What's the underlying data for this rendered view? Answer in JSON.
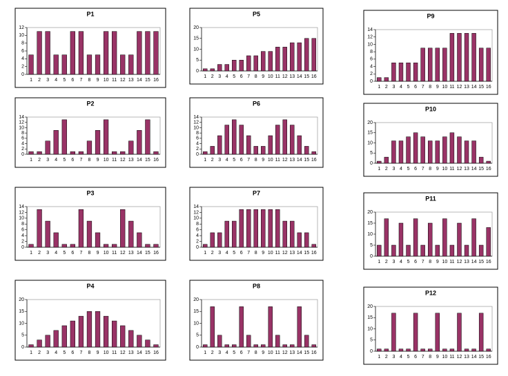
{
  "chart_data": [
    {
      "type": "bar",
      "title": "P1",
      "color": "#993366",
      "categories": [
        "1",
        "2",
        "3",
        "4",
        "5",
        "6",
        "7",
        "8",
        "9",
        "10",
        "11",
        "12",
        "13",
        "14",
        "15",
        "16"
      ],
      "values": [
        5,
        11,
        11,
        5,
        5,
        11,
        11,
        5,
        5,
        11,
        11,
        5,
        5,
        11,
        11,
        11
      ],
      "ylim": [
        0,
        12
      ],
      "yticks": [
        0,
        2,
        4,
        6,
        8,
        10,
        12
      ]
    },
    {
      "type": "bar",
      "title": "P2",
      "color": "#993366",
      "categories": [
        "1",
        "2",
        "3",
        "4",
        "5",
        "6",
        "7",
        "8",
        "9",
        "10",
        "11",
        "12",
        "13",
        "14",
        "15",
        "16"
      ],
      "values": [
        1,
        1,
        5,
        9,
        13,
        1,
        1,
        5,
        9,
        13,
        1,
        1,
        5,
        9,
        13,
        1
      ],
      "ylim": [
        0,
        14
      ],
      "yticks": [
        0,
        2,
        4,
        6,
        8,
        10,
        12,
        14
      ]
    },
    {
      "type": "bar",
      "title": "P3",
      "color": "#993366",
      "categories": [
        "1",
        "2",
        "3",
        "4",
        "5",
        "6",
        "7",
        "8",
        "9",
        "10",
        "11",
        "12",
        "13",
        "14",
        "15",
        "16"
      ],
      "values": [
        1,
        13,
        9,
        5,
        1,
        1,
        13,
        9,
        5,
        1,
        1,
        13,
        9,
        5,
        1,
        1
      ],
      "ylim": [
        0,
        14
      ],
      "yticks": [
        0,
        2,
        4,
        6,
        8,
        10,
        12,
        14
      ]
    },
    {
      "type": "bar",
      "title": "P4",
      "color": "#993366",
      "categories": [
        "1",
        "2",
        "3",
        "4",
        "5",
        "6",
        "7",
        "8",
        "9",
        "10",
        "11",
        "12",
        "13",
        "14",
        "15",
        "16"
      ],
      "values": [
        1,
        3,
        5,
        7,
        9,
        11,
        13,
        15,
        15,
        13,
        11,
        9,
        7,
        5,
        3,
        1
      ],
      "ylim": [
        0,
        20
      ],
      "yticks": [
        0,
        5,
        10,
        15,
        20
      ]
    },
    {
      "type": "bar",
      "title": "P5",
      "color": "#993366",
      "categories": [
        "1",
        "2",
        "3",
        "4",
        "5",
        "6",
        "7",
        "8",
        "9",
        "10",
        "11",
        "12",
        "13",
        "14",
        "15",
        "16"
      ],
      "values": [
        1,
        1,
        3,
        3,
        5,
        5,
        7,
        7,
        9,
        9,
        11,
        11,
        13,
        13,
        15,
        15
      ],
      "ylim": [
        0,
        20
      ],
      "yticks": [
        0,
        5,
        10,
        15,
        20
      ]
    },
    {
      "type": "bar",
      "title": "P6",
      "color": "#993366",
      "categories": [
        "1",
        "2",
        "3",
        "4",
        "5",
        "6",
        "7",
        "8",
        "9",
        "10",
        "11",
        "12",
        "13",
        "14",
        "15",
        "16"
      ],
      "values": [
        1,
        3,
        7,
        11,
        13,
        11,
        7,
        3,
        3,
        7,
        11,
        13,
        11,
        7,
        3,
        1
      ],
      "ylim": [
        0,
        14
      ],
      "yticks": [
        0,
        2,
        4,
        6,
        8,
        10,
        12,
        14
      ]
    },
    {
      "type": "bar",
      "title": "P7",
      "color": "#993366",
      "categories": [
        "1",
        "2",
        "3",
        "4",
        "5",
        "6",
        "7",
        "8",
        "9",
        "10",
        "11",
        "12",
        "13",
        "14",
        "15",
        "16"
      ],
      "values": [
        1,
        5,
        5,
        9,
        9,
        13,
        13,
        13,
        13,
        13,
        13,
        9,
        9,
        5,
        5,
        1
      ],
      "ylim": [
        0,
        14
      ],
      "yticks": [
        0,
        2,
        4,
        6,
        8,
        10,
        12,
        14
      ]
    },
    {
      "type": "bar",
      "title": "P8",
      "color": "#993366",
      "categories": [
        "1",
        "2",
        "3",
        "4",
        "5",
        "6",
        "7",
        "8",
        "9",
        "10",
        "11",
        "12",
        "13",
        "14",
        "15",
        "16"
      ],
      "values": [
        1,
        17,
        5,
        1,
        1,
        17,
        5,
        1,
        1,
        17,
        5,
        1,
        1,
        17,
        5,
        1
      ],
      "ylim": [
        0,
        20
      ],
      "yticks": [
        0,
        5,
        10,
        15,
        20
      ]
    },
    {
      "type": "bar",
      "title": "P9",
      "color": "#993366",
      "categories": [
        "1",
        "2",
        "3",
        "4",
        "5",
        "6",
        "7",
        "8",
        "9",
        "10",
        "11",
        "12",
        "13",
        "14",
        "15",
        "16"
      ],
      "values": [
        1,
        1,
        5,
        5,
        5,
        5,
        9,
        9,
        9,
        9,
        13,
        13,
        13,
        13,
        9,
        9
      ],
      "ylim": [
        0,
        14
      ],
      "yticks": [
        0,
        2,
        4,
        6,
        8,
        10,
        12,
        14
      ]
    },
    {
      "type": "bar",
      "title": "P10",
      "color": "#993366",
      "categories": [
        "1",
        "2",
        "3",
        "4",
        "5",
        "6",
        "7",
        "8",
        "9",
        "10",
        "11",
        "12",
        "13",
        "14",
        "15",
        "16"
      ],
      "values": [
        1,
        3,
        11,
        11,
        13,
        15,
        13,
        11,
        11,
        13,
        15,
        13,
        11,
        11,
        3,
        1
      ],
      "ylim": [
        0,
        20
      ],
      "yticks": [
        0,
        5,
        10,
        15,
        20
      ]
    },
    {
      "type": "bar",
      "title": "P11",
      "color": "#993366",
      "categories": [
        "1",
        "2",
        "3",
        "4",
        "5",
        "6",
        "7",
        "8",
        "9",
        "10",
        "11",
        "12",
        "13",
        "14",
        "15",
        "16"
      ],
      "values": [
        5,
        17,
        5,
        15,
        5,
        17,
        5,
        15,
        5,
        17,
        5,
        15,
        5,
        17,
        5,
        13
      ],
      "ylim": [
        0,
        20
      ],
      "yticks": [
        0,
        5,
        10,
        15,
        20
      ]
    },
    {
      "type": "bar",
      "title": "P12",
      "color": "#993366",
      "categories": [
        "1",
        "2",
        "3",
        "4",
        "5",
        "6",
        "7",
        "8",
        "9",
        "10",
        "11",
        "12",
        "13",
        "14",
        "15",
        "16"
      ],
      "values": [
        1,
        1,
        17,
        1,
        1,
        17,
        1,
        1,
        17,
        1,
        1,
        17,
        1,
        1,
        17,
        1
      ],
      "ylim": [
        0,
        20
      ],
      "yticks": [
        0,
        5,
        10,
        15,
        20
      ]
    }
  ]
}
